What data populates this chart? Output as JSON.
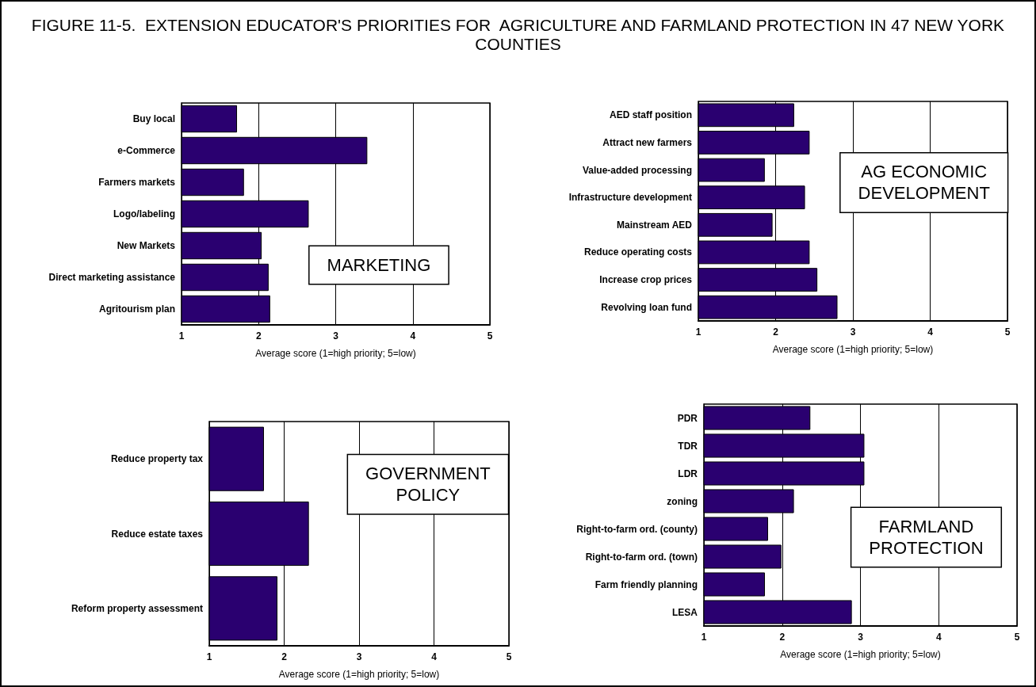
{
  "chart_data": [
    {
      "type": "bar",
      "orientation": "horizontal",
      "title": "FIGURE 11-5.  EXTENSION EDUCATOR'S PRIORITIES FOR  AGRICULTURE AND FARMLAND PROTECTION IN 47 NEW YORK COUNTIES",
      "categories": [
        "Buy local",
        "e-Commerce",
        "Farmers markets",
        "Logo/labeling",
        "New Markets",
        "Direct marketing assistance",
        "Agritourism plan"
      ],
      "values": [
        1.72,
        3.41,
        1.81,
        2.65,
        2.04,
        2.13,
        2.15
      ],
      "color": "#2a0070",
      "xlim": [
        1,
        5
      ],
      "xticks": [
        1,
        2,
        3,
        4,
        5
      ],
      "xlabel": "Average score (1=high priority; 5=low)",
      "annotations": [
        "MARKETING"
      ],
      "grid": "x"
    },
    {
      "type": "bar",
      "orientation": "horizontal",
      "categories": [
        "AED staff position",
        "Attract new farmers",
        "Value-added processing",
        "Infrastructure development",
        "Mainstream AED",
        "Reduce operating costs",
        "Increase crop prices",
        "Revolving loan fund"
      ],
      "values": [
        2.24,
        2.44,
        1.86,
        2.38,
        1.96,
        2.44,
        2.54,
        2.8
      ],
      "color": "#2a0070",
      "xlim": [
        1,
        5
      ],
      "xticks": [
        1,
        2,
        3,
        4,
        5
      ],
      "xlabel": "Average score (1=high priority; 5=low)",
      "annotations": [
        "AG ECONOMIC\nDEVELOPMENT"
      ],
      "grid": "x"
    },
    {
      "type": "bar",
      "orientation": "horizontal",
      "categories": [
        "Reduce property tax",
        "Reduce estate taxes",
        "Reform property assessment"
      ],
      "values": [
        1.73,
        2.33,
        1.91
      ],
      "color": "#2a0070",
      "xlim": [
        1,
        5
      ],
      "xticks": [
        1,
        2,
        3,
        4,
        5
      ],
      "xlabel": "Average score (1=high priority; 5=low)",
      "annotations": [
        "GOVERNMENT\nPOLICY"
      ],
      "grid": "x"
    },
    {
      "type": "bar",
      "orientation": "horizontal",
      "categories": [
        "PDR",
        "TDR",
        "LDR",
        "zoning",
        "Right-to-farm ord. (county)",
        "Right-to-farm ord. (town)",
        "Farm friendly planning",
        "LESA"
      ],
      "values": [
        2.36,
        3.05,
        3.05,
        2.15,
        1.82,
        1.99,
        1.78,
        2.89
      ],
      "color": "#2a0070",
      "xlim": [
        1,
        5
      ],
      "xticks": [
        1,
        2,
        3,
        4,
        5
      ],
      "xlabel": "Average score (1=high priority; 5=low)",
      "annotations": [
        "FARMLAND\nPROTECTION"
      ],
      "grid": "x"
    }
  ]
}
